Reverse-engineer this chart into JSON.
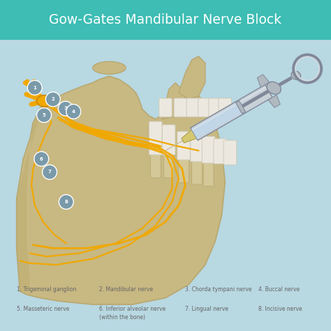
{
  "title": "Gow-Gates Mandibular Nerve Block",
  "title_color": "#ffffff",
  "title_bg_color": "#3dbdb4",
  "background_color": "#b8d8e2",
  "legend_items": [
    {
      "num": "1.",
      "text": "Trigeminal ganglion",
      "col": 0,
      "row": 0
    },
    {
      "num": "2.",
      "text": "Mandibular nerve",
      "col": 1,
      "row": 0
    },
    {
      "num": "3.",
      "text": "Chorda tympani nerve",
      "col": 2,
      "row": 0
    },
    {
      "num": "4.",
      "text": "Buccal nerve",
      "col": 3,
      "row": 0
    },
    {
      "num": "5.",
      "text": "Masseteric nerve",
      "col": 0,
      "row": 1
    },
    {
      "num": "6.",
      "text": "Inferior alveolar nerve\n(within the bone)",
      "col": 1,
      "row": 1
    },
    {
      "num": "7.",
      "text": "Lingual nerve",
      "col": 2,
      "row": 1
    },
    {
      "num": "8.",
      "text": "Incisive nerve",
      "col": 3,
      "row": 1
    }
  ],
  "legend_color": "#666666",
  "nerve_color": "#f0a800",
  "dot_color": "#7a9aaa",
  "dot_edge_color": "#ffffff",
  "jaw_color": "#c8b882",
  "jaw_shadow_color": "#b8a870",
  "ganglion_color": "#f0a800",
  "syringe_metal": "#b0b8c0",
  "syringe_dark": "#808898",
  "syringe_liquid": "#c0d8ec",
  "tooth_white": "#ede8df",
  "tooth_root": "#d4c898"
}
